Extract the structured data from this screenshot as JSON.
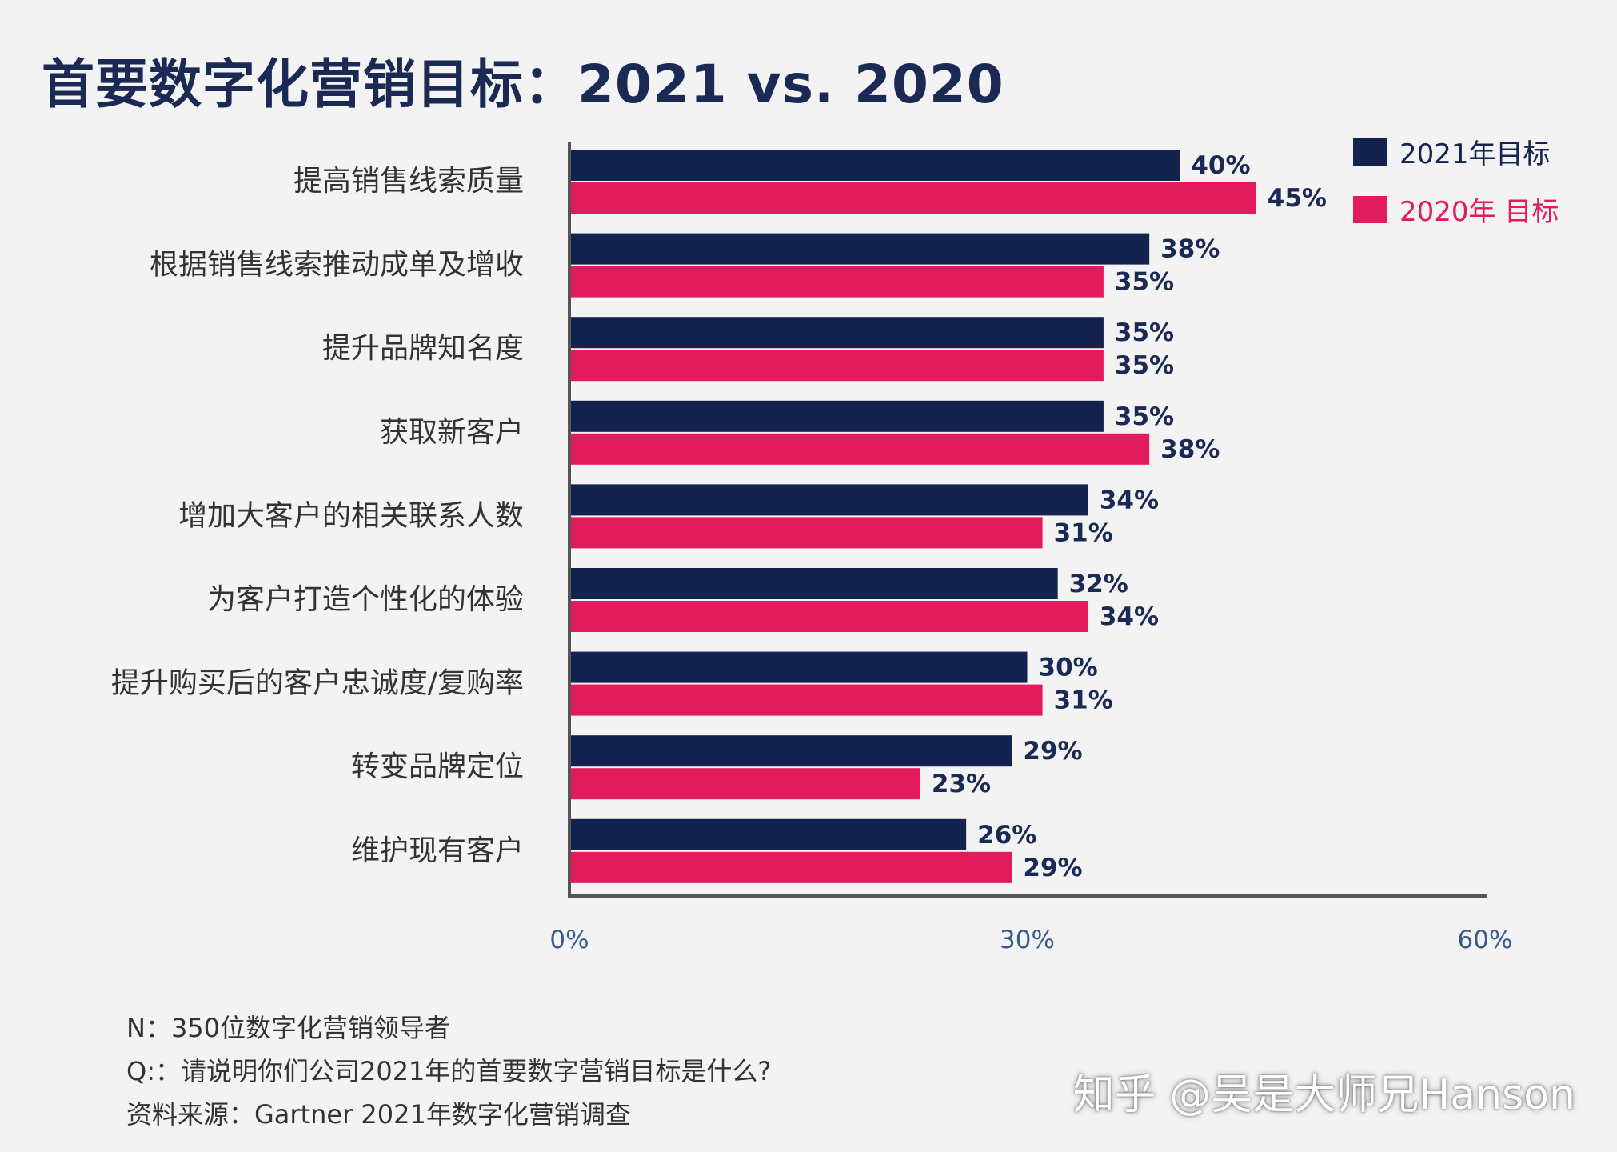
{
  "chart_data": {
    "type": "bar",
    "orientation": "horizontal",
    "title": "首要数字化营销目标：2021 vs. 2020",
    "categories": [
      "提高销售线索质量",
      "根据销售线索推动成单及增收",
      "提升品牌知名度",
      "获取新客户",
      "增加大客户的相关联系人数",
      "为客户打造个性化的体验",
      "提升购买后的客户忠诚度/复购率",
      "转变品牌定位",
      "维护现有客户"
    ],
    "series": [
      {
        "name": "2021年目标",
        "color": "#13224f",
        "values": [
          40,
          38,
          35,
          35,
          34,
          32,
          30,
          29,
          26
        ],
        "labels": [
          "40%",
          "38%",
          "35%",
          "35%",
          "34%",
          "32%",
          "30%",
          "29%",
          "26%"
        ]
      },
      {
        "name": "2020年 目标",
        "color": "#e21b5c",
        "values": [
          45,
          35,
          35,
          38,
          31,
          34,
          31,
          23,
          29
        ],
        "labels": [
          "45%",
          "35%",
          "35%",
          "38%",
          "31%",
          "34%",
          "31%",
          "23%",
          "29%"
        ]
      }
    ],
    "xlim": [
      0,
      60
    ],
    "xticks": [
      0,
      30,
      60
    ],
    "xtick_labels": [
      "0%",
      "30%",
      "60%"
    ],
    "legend": "top-right"
  },
  "notes": {
    "n": "N：350位数字化营销领导者",
    "q": "Q:：请说明你们公司2021年的首要数字营销目标是什么?",
    "source": "资料来源：Gartner 2021年数字化营销调查"
  },
  "watermark": "知乎 @吴是大师兄Hanson"
}
